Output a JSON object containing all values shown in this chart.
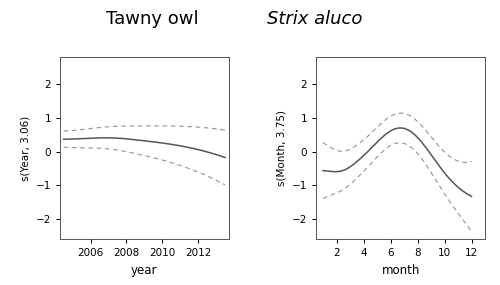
{
  "title_left": "Tawny owl",
  "title_right": "Strix aluco",
  "title_fontsize": 13,
  "ylabel_left": "s(Year, 3.06)",
  "ylabel_right": "s(Month, 3.75)",
  "xlabel_left": "year",
  "xlabel_right": "month",
  "background_color": "#ffffff",
  "panel_bg": "#ffffff",
  "line_color": "#555555",
  "ci_color": "#999999",
  "ylim_left": [
    -2.6,
    2.8
  ],
  "ylim_right": [
    -2.6,
    2.8
  ],
  "yticks_left": [
    -2,
    -1,
    0,
    1,
    2
  ],
  "yticks_right": [
    -2,
    -1,
    0,
    1,
    2
  ],
  "xticks_left": [
    2006,
    2008,
    2010,
    2012
  ],
  "xticks_right": [
    2,
    4,
    6,
    8,
    10,
    12
  ],
  "xlim_left": [
    2004.3,
    2013.7
  ],
  "xlim_right": [
    0.5,
    13.0
  ]
}
